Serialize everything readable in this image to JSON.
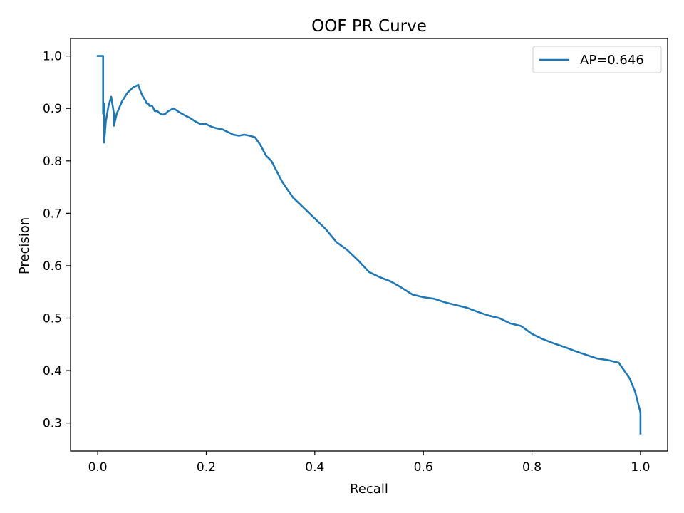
{
  "chart_data": {
    "type": "line",
    "title": "OOF PR Curve",
    "xlabel": "Recall",
    "ylabel": "Precision",
    "xlim": [
      -0.05,
      1.05
    ],
    "ylim": [
      0.2465,
      1.0335
    ],
    "xticks": [
      "0.0",
      "0.2",
      "0.4",
      "0.6",
      "0.8",
      "1.0"
    ],
    "yticks": [
      "0.3",
      "0.4",
      "0.5",
      "0.6",
      "0.7",
      "0.8",
      "0.9",
      "1.0"
    ],
    "grid": false,
    "legend_position": "top-right",
    "series": [
      {
        "name": "AP=0.646",
        "color": "#1f77b4",
        "x": [
          0.0,
          0.01,
          0.01,
          0.012,
          0.012,
          0.015,
          0.02,
          0.025,
          0.03,
          0.03,
          0.035,
          0.045,
          0.055,
          0.065,
          0.075,
          0.078,
          0.08,
          0.082,
          0.085,
          0.088,
          0.09,
          0.093,
          0.095,
          0.1,
          0.103,
          0.105,
          0.11,
          0.115,
          0.12,
          0.125,
          0.13,
          0.14,
          0.15,
          0.16,
          0.17,
          0.18,
          0.19,
          0.2,
          0.21,
          0.22,
          0.23,
          0.24,
          0.25,
          0.26,
          0.27,
          0.28,
          0.29,
          0.3,
          0.31,
          0.32,
          0.33,
          0.34,
          0.35,
          0.36,
          0.38,
          0.4,
          0.42,
          0.44,
          0.46,
          0.48,
          0.5,
          0.52,
          0.54,
          0.56,
          0.58,
          0.6,
          0.62,
          0.64,
          0.66,
          0.68,
          0.7,
          0.72,
          0.74,
          0.76,
          0.78,
          0.8,
          0.82,
          0.84,
          0.86,
          0.88,
          0.9,
          0.92,
          0.94,
          0.96,
          0.97,
          0.98,
          0.99,
          0.995,
          1.0,
          1.0
        ],
        "y": [
          1.0,
          1.0,
          0.89,
          0.91,
          0.835,
          0.875,
          0.905,
          0.922,
          0.89,
          0.867,
          0.89,
          0.914,
          0.93,
          0.94,
          0.945,
          0.935,
          0.93,
          0.925,
          0.92,
          0.915,
          0.91,
          0.91,
          0.905,
          0.905,
          0.9,
          0.895,
          0.895,
          0.89,
          0.888,
          0.89,
          0.895,
          0.9,
          0.893,
          0.887,
          0.882,
          0.875,
          0.87,
          0.87,
          0.865,
          0.862,
          0.86,
          0.855,
          0.85,
          0.848,
          0.85,
          0.848,
          0.845,
          0.83,
          0.81,
          0.8,
          0.78,
          0.76,
          0.745,
          0.73,
          0.71,
          0.69,
          0.67,
          0.645,
          0.63,
          0.61,
          0.588,
          0.578,
          0.57,
          0.558,
          0.545,
          0.54,
          0.537,
          0.53,
          0.525,
          0.52,
          0.512,
          0.505,
          0.5,
          0.49,
          0.485,
          0.47,
          0.46,
          0.452,
          0.445,
          0.437,
          0.43,
          0.423,
          0.42,
          0.415,
          0.4,
          0.385,
          0.36,
          0.34,
          0.32,
          0.28
        ]
      }
    ]
  }
}
